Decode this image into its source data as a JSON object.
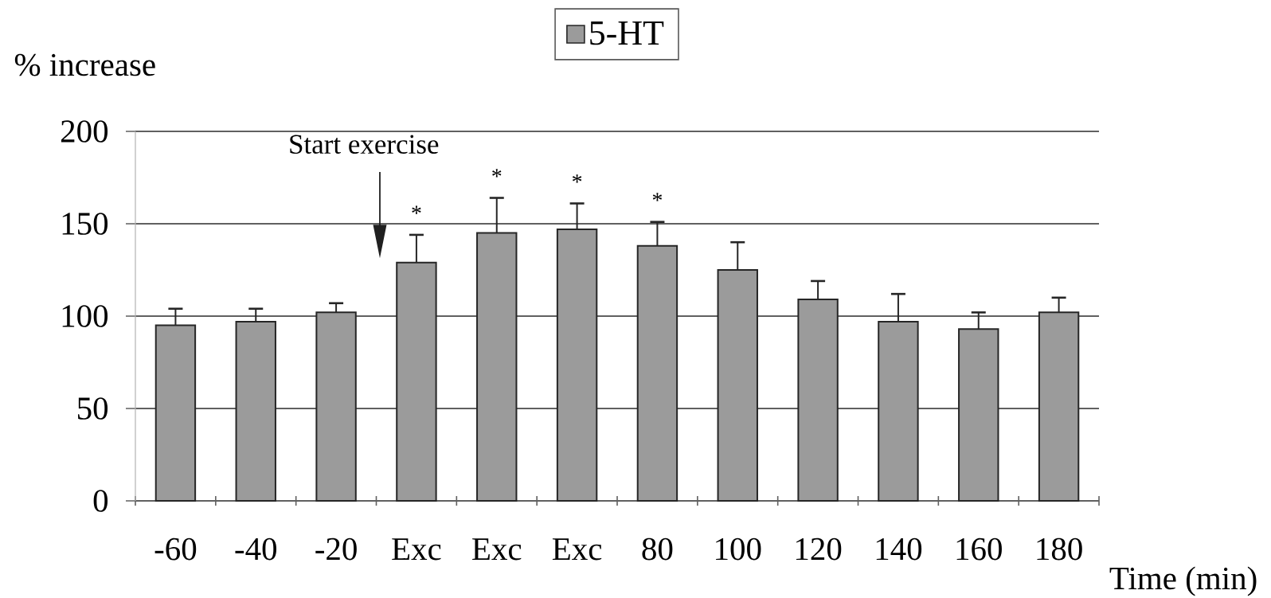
{
  "chart_data": {
    "type": "bar",
    "xlabel": "Time (min)",
    "ylabel": "% increase",
    "categories": [
      "-60",
      "-40",
      "-20",
      "Exc",
      "Exc",
      "Exc",
      "80",
      "100",
      "120",
      "140",
      "160",
      "180"
    ],
    "series": [
      {
        "name": "5-HT",
        "color": "#9b9b9b",
        "values": [
          95,
          97,
          102,
          129,
          145,
          147,
          138,
          125,
          109,
          97,
          93,
          102
        ],
        "errors": [
          [
            95,
            104
          ],
          [
            97,
            104
          ],
          [
            102,
            107
          ],
          [
            129,
            144
          ],
          [
            145,
            164
          ],
          [
            147,
            161
          ],
          [
            138,
            151
          ],
          [
            125,
            140
          ],
          [
            109,
            119
          ],
          [
            97,
            112
          ],
          [
            93,
            102
          ],
          [
            102,
            110
          ]
        ],
        "value_labels": [
          null,
          null,
          null,
          "*",
          "*",
          "*",
          "*",
          null,
          null,
          null,
          null,
          null
        ]
      }
    ],
    "ylim": [
      0,
      200
    ],
    "yticks": [
      0,
      50,
      100,
      150,
      200
    ],
    "grid": "y",
    "legend": "top",
    "annotations": [
      "Start exercise"
    ]
  }
}
